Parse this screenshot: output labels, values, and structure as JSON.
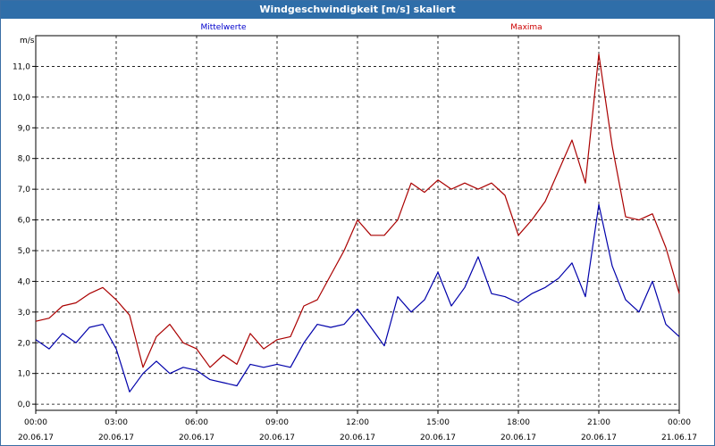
{
  "chart_data": {
    "type": "line",
    "title": "Windgeschwindigkeit [m/s] skaliert",
    "ylabel": "m/s",
    "ylim": [
      -0.2,
      12.0
    ],
    "yticks": [
      "0,0",
      "1,0",
      "2,0",
      "3,0",
      "4,0",
      "5,0",
      "6,0",
      "7,0",
      "8,0",
      "9,0",
      "10,0",
      "11,0"
    ],
    "ytick_values": [
      0,
      1,
      2,
      3,
      4,
      5,
      6,
      7,
      8,
      9,
      10,
      11
    ],
    "xlim": [
      0,
      24
    ],
    "xticks": [
      {
        "time": "00:00",
        "date": "20.06.17"
      },
      {
        "time": "03:00",
        "date": "20.06.17"
      },
      {
        "time": "06:00",
        "date": "20.06.17"
      },
      {
        "time": "09:00",
        "date": "20.06.17"
      },
      {
        "time": "12:00",
        "date": "20.06.17"
      },
      {
        "time": "15:00",
        "date": "20.06.17"
      },
      {
        "time": "18:00",
        "date": "20.06.17"
      },
      {
        "time": "21:00",
        "date": "20.06.17"
      },
      {
        "time": "00:00",
        "date": "21.06.17"
      }
    ],
    "xtick_hours": [
      0,
      3,
      6,
      9,
      12,
      15,
      18,
      21,
      24
    ],
    "series": [
      {
        "name": "Mittelwerte",
        "color": "#0000aa",
        "x": [
          0,
          0.5,
          1,
          1.5,
          2,
          2.5,
          3,
          3.5,
          4,
          4.5,
          5,
          5.5,
          6,
          6.5,
          7,
          7.5,
          8,
          8.5,
          9,
          9.5,
          10,
          10.5,
          11,
          11.5,
          12,
          12.5,
          13,
          13.5,
          14,
          14.5,
          15,
          15.5,
          16,
          16.5,
          17,
          17.5,
          18,
          18.5,
          19,
          19.5,
          20,
          20.5,
          21,
          21.5,
          22,
          22.5,
          23,
          23.5,
          24
        ],
        "values": [
          2.1,
          1.8,
          2.3,
          2.0,
          2.5,
          2.6,
          1.8,
          0.4,
          1.0,
          1.4,
          1.0,
          1.2,
          1.1,
          0.8,
          0.7,
          0.6,
          1.3,
          1.2,
          1.3,
          1.2,
          2.0,
          2.6,
          2.5,
          2.6,
          3.1,
          2.5,
          1.9,
          3.5,
          3.0,
          3.4,
          4.3,
          3.2,
          3.8,
          4.8,
          3.6,
          3.5,
          3.3,
          3.6,
          3.8,
          4.1,
          4.6,
          3.5,
          6.5,
          4.5,
          3.4,
          3.0,
          4.0,
          2.6,
          2.2
        ]
      },
      {
        "name": "Maxima",
        "color": "#aa0000",
        "x": [
          0,
          0.5,
          1,
          1.5,
          2,
          2.5,
          3,
          3.5,
          4,
          4.5,
          5,
          5.5,
          6,
          6.5,
          7,
          7.5,
          8,
          8.5,
          9,
          9.5,
          10,
          10.5,
          11,
          11.5,
          12,
          12.5,
          13,
          13.5,
          14,
          14.5,
          15,
          15.5,
          16,
          16.5,
          17,
          17.5,
          18,
          18.5,
          19,
          19.5,
          20,
          20.5,
          21,
          21.5,
          22,
          22.5,
          23,
          23.5,
          24
        ],
        "values": [
          2.7,
          2.8,
          3.2,
          3.3,
          3.6,
          3.8,
          3.4,
          2.9,
          1.2,
          2.2,
          2.6,
          2.0,
          1.8,
          1.2,
          1.6,
          1.3,
          2.3,
          1.8,
          2.1,
          2.2,
          3.2,
          3.4,
          4.2,
          5.0,
          6.0,
          5.5,
          5.5,
          6.0,
          7.2,
          6.9,
          7.3,
          7.0,
          7.2,
          7.0,
          7.2,
          6.8,
          5.5,
          6.0,
          6.6,
          7.6,
          8.6,
          7.2,
          11.4,
          8.4,
          6.1,
          6.0,
          6.2,
          5.1,
          3.6
        ]
      }
    ],
    "legend": [
      {
        "label": "Mittelwerte",
        "color": "#0000cc"
      },
      {
        "label": "Maxima",
        "color": "#cc0000"
      }
    ]
  }
}
